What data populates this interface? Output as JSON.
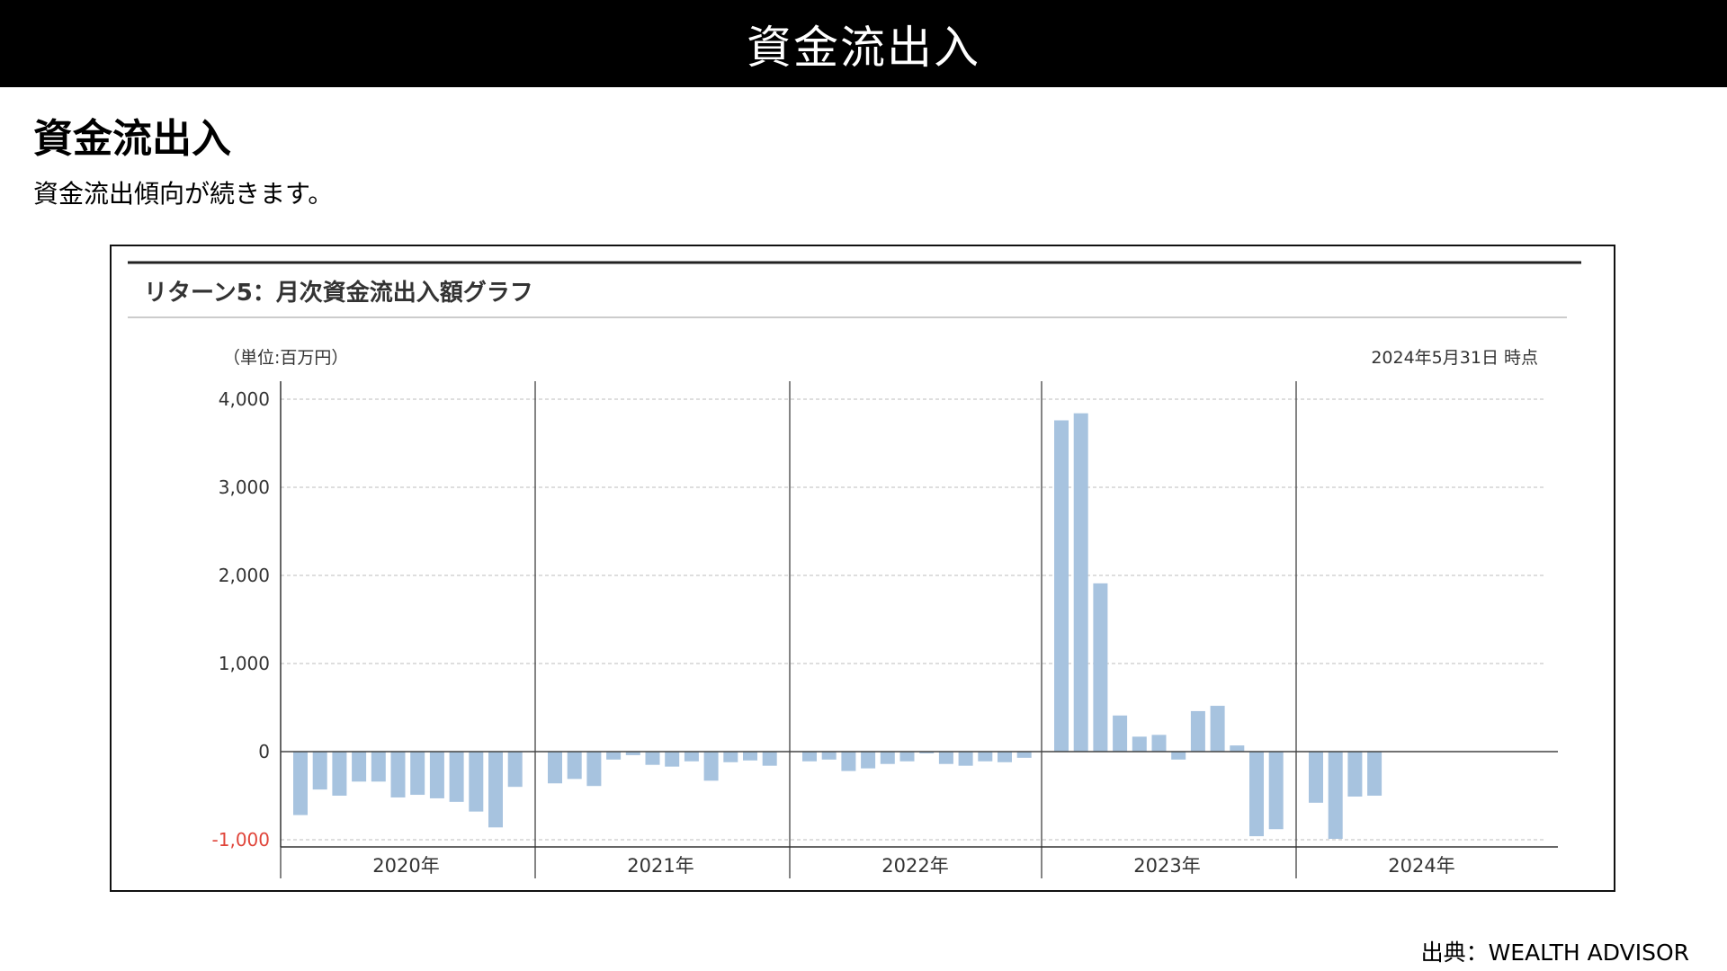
{
  "header": {
    "title": "資金流出入"
  },
  "section": {
    "heading": "資金流出入",
    "description": "資金流出傾向が続きます。"
  },
  "source": "出典：WEALTH ADVISOR",
  "colors": {
    "bar": "#a7c3df",
    "negative_label": "#e0453a",
    "grid": "#bdbdbd",
    "axis": "#333333"
  },
  "chart_data": {
    "type": "bar",
    "title": "リターン5：月次資金流出入額グラフ",
    "unit_label": "（単位:百万円）",
    "as_of": "2024年5月31日 時点",
    "ylim": [
      -1000,
      4000
    ],
    "yticks": [
      {
        "value": 4000,
        "label": "4,000"
      },
      {
        "value": 3000,
        "label": "3,000"
      },
      {
        "value": 2000,
        "label": "2,000"
      },
      {
        "value": 1000,
        "label": "1,000"
      },
      {
        "value": 0,
        "label": "0"
      },
      {
        "value": -1000,
        "label": "-1,000"
      }
    ],
    "grid": true,
    "years": [
      {
        "label": "2020年",
        "values": [
          -720,
          -430,
          -500,
          -340,
          -340,
          -520,
          -490,
          -530,
          -570,
          -680,
          -860,
          -400
        ]
      },
      {
        "label": "2021年",
        "values": [
          -360,
          -310,
          -390,
          -90,
          -40,
          -150,
          -170,
          -110,
          -330,
          -120,
          -100,
          -160
        ]
      },
      {
        "label": "2022年",
        "values": [
          -110,
          -90,
          -220,
          -190,
          -140,
          -110,
          -20,
          -140,
          -160,
          -110,
          -120,
          -70
        ]
      },
      {
        "label": "2023年",
        "values": [
          3760,
          3840,
          1910,
          410,
          170,
          190,
          -90,
          460,
          520,
          70,
          -960,
          -880
        ]
      },
      {
        "label": "2024年",
        "values": [
          -580,
          -990,
          -510,
          -500
        ]
      }
    ]
  }
}
